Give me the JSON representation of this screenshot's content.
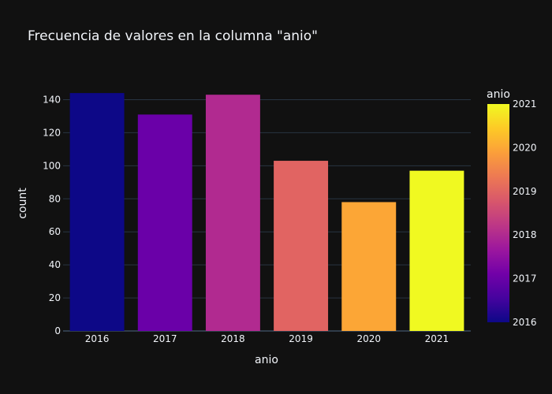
{
  "chart_data": {
    "type": "bar",
    "title": "Frecuencia de valores en la columna \"anio\"",
    "xlabel": "anio",
    "ylabel": "count",
    "categories": [
      "2016",
      "2017",
      "2018",
      "2019",
      "2020",
      "2021"
    ],
    "values": [
      144,
      131,
      143,
      103,
      78,
      97
    ],
    "ylim": [
      0,
      145
    ],
    "yticks": [
      0,
      20,
      40,
      60,
      80,
      100,
      120,
      140
    ],
    "grid": true,
    "colors": [
      "#0d0887",
      "#6a00a8",
      "#b12a90",
      "#e16462",
      "#fca636",
      "#f0f921"
    ],
    "colorbar": {
      "title": "anio",
      "range": [
        2016,
        2021
      ],
      "ticks": [
        "2016",
        "2017",
        "2018",
        "2019",
        "2020",
        "2021"
      ],
      "colorscale": [
        "#0d0887",
        "#46039f",
        "#7201a8",
        "#9c179e",
        "#bd3786",
        "#d8576b",
        "#ed7953",
        "#fb9f3a",
        "#fdca26",
        "#f0f921"
      ]
    }
  }
}
